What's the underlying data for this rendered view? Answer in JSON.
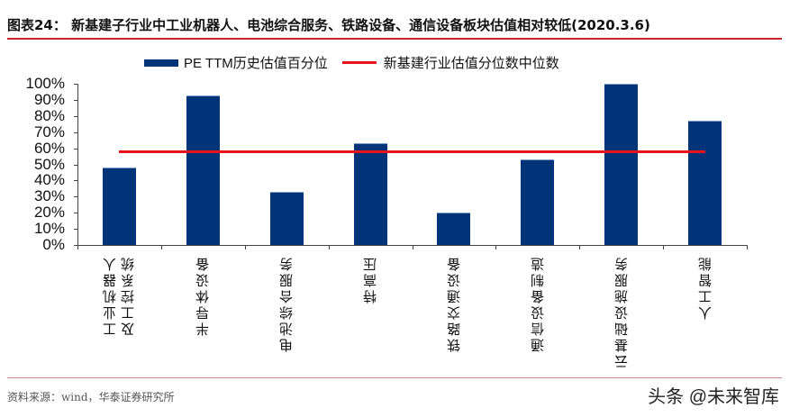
{
  "header": {
    "figure_label": "图表24：",
    "title": "新基建子行业中工业机器人、电池综合服务、铁路设备、通信设备板块估值相对较低(2020.3.6)"
  },
  "legend": {
    "bar_label": "PE TTM历史估值百分位",
    "line_label": "新基建行业估值分位数中位数"
  },
  "colors": {
    "bar": "#003377",
    "median_line": "#e8141c",
    "rule": "#c8262c"
  },
  "footer": {
    "source": "资料来源：wind，华泰证券研究所",
    "watermark": "头条 @未来智库"
  },
  "chart_data": {
    "type": "bar",
    "title": "新基建子行业中工业机器人、电池综合服务、铁路设备、通信设备板块估值相对较低(2020.3.6)",
    "xlabel": "",
    "ylabel": "",
    "ylim": [
      0,
      100
    ],
    "y_ticks": [
      "100%",
      "90%",
      "80%",
      "70%",
      "60%",
      "50%",
      "40%",
      "30%",
      "20%",
      "10%",
      "0%"
    ],
    "categories": [
      "工业机器人及工控系统",
      "半导体设备",
      "电池综合服务",
      "特高压",
      "铁路交通设备",
      "通信设备制造",
      "云基础设施服务",
      "人工智能"
    ],
    "category_lines": [
      [
        "工业机器人",
        "及工控系统"
      ],
      [
        "半导体设备"
      ],
      [
        "电池综合服务"
      ],
      [
        "特高压"
      ],
      [
        "铁路交通设备"
      ],
      [
        "通信设备制造"
      ],
      [
        "云基础设施服务"
      ],
      [
        "人工智能"
      ]
    ],
    "series": [
      {
        "name": "PE TTM历史估值百分位",
        "type": "bar",
        "values": [
          48,
          93,
          33,
          63,
          20,
          53,
          100,
          77
        ]
      },
      {
        "name": "新基建行业估值分位数中位数",
        "type": "line",
        "values": [
          58,
          58,
          58,
          58,
          58,
          58,
          58,
          58
        ]
      }
    ],
    "grid": false,
    "legend_position": "top"
  }
}
